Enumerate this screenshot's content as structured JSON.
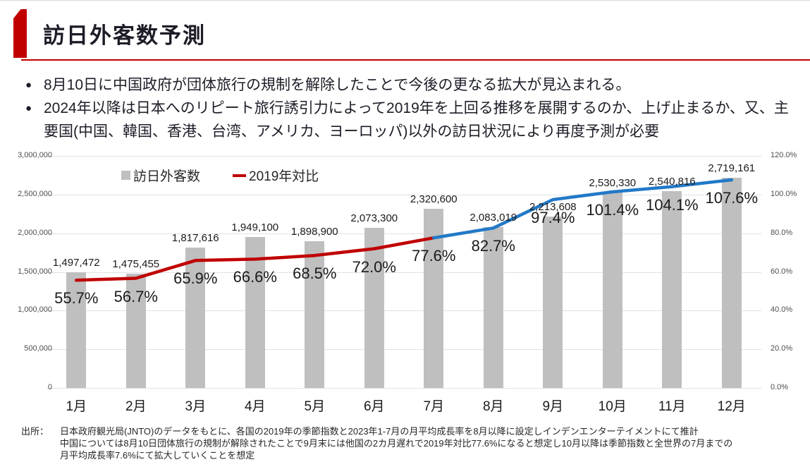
{
  "header": {
    "title": "訪日外客数予測",
    "accent_color": "#C00000"
  },
  "bullets": [
    "8月10日に中国政府が団体旅行の規制を解除したことで今後の更なる拡大が見込まれる。",
    "2024年以降は日本へのリピート旅行誘引力によって2019年を上回る推移を展開するのか、上げ止まるか、又、主要国(中国、韓国、香港、台湾、アメリカ、ヨーロッパ)以外の訪日状況により再度予測が必要"
  ],
  "chart_data": {
    "type": "bar+line combo",
    "categories": [
      "1月",
      "2月",
      "3月",
      "4月",
      "5月",
      "6月",
      "7月",
      "8月",
      "9月",
      "10月",
      "11月",
      "12月"
    ],
    "series": [
      {
        "name": "訪日外客数",
        "type": "bar",
        "color": "#BFBFBF",
        "values": [
          1497472,
          1475455,
          1817616,
          1949100,
          1898900,
          2073300,
          2320600,
          2083019,
          2213608,
          2530330,
          2540816,
          2719161
        ]
      },
      {
        "name": "2019年対比",
        "type": "line",
        "color_actual": "#C00000",
        "color_forecast": "#2279C7",
        "split_index": 6,
        "values_pct": [
          55.7,
          56.7,
          65.9,
          66.6,
          68.5,
          72.0,
          77.6,
          82.7,
          97.4,
          101.4,
          104.1,
          107.6
        ]
      }
    ],
    "left_axis": {
      "min": 0,
      "max": 3000000,
      "step": 500000
    },
    "right_axis": {
      "min": 0,
      "max": 120,
      "step": 20,
      "suffix": "%"
    },
    "legend": [
      {
        "label": "訪日外客数",
        "swatch": "square",
        "color": "#BFBFBF"
      },
      {
        "label": "2019年対比",
        "swatch": "dash",
        "color": "#C00000"
      }
    ],
    "grid": "horizontal-on"
  },
  "footer": {
    "label": "出所：",
    "lines": [
      "日本政府観光局(JNTO)のデータをもとに、各国の2019年の季節指数と2023年1-7月の月平均成長率を8月以降に設定しインデンエンターテイメントにて推計",
      "中国については8月10日団体旅行の規制が解除されたことで9月末には他国の2カ月遅れで2019年対比77.6%になると想定し10月以降は季節指数と全世界の7月までの",
      "月平均成長率7.6%にて拡大していくことを想定"
    ]
  }
}
